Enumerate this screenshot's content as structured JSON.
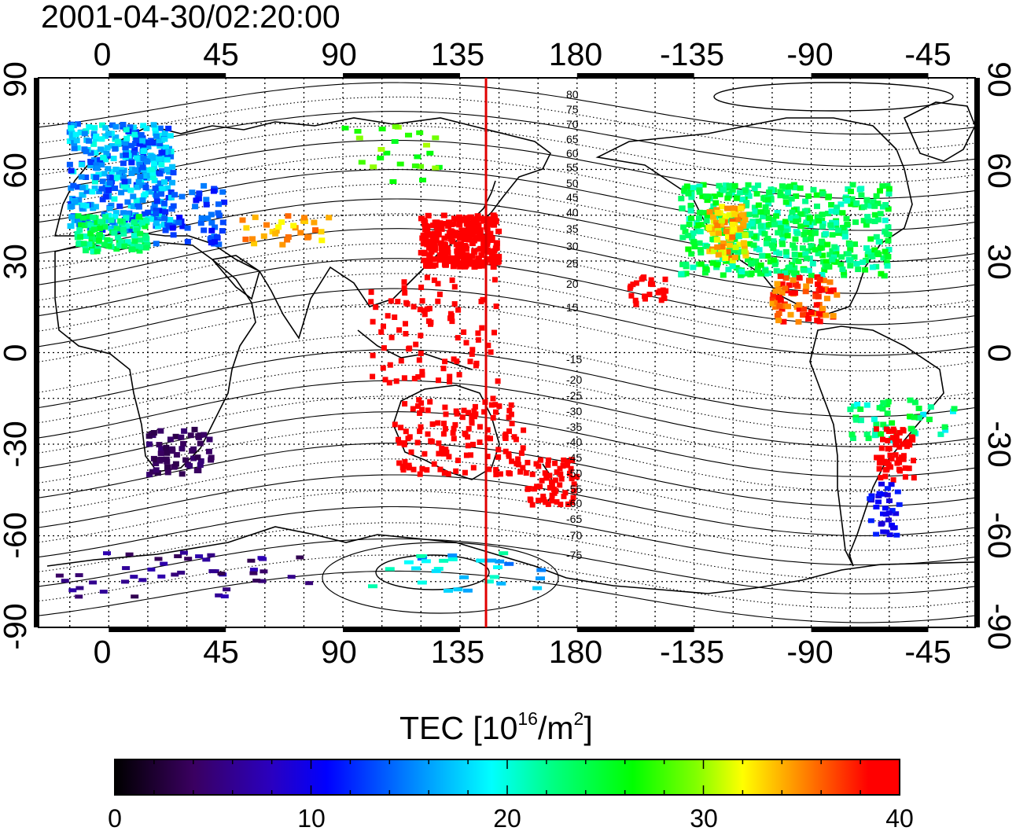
{
  "timestamp": "2001-04-30/02:20:00",
  "lon_top_labels": [
    "0",
    "45",
    "90",
    "135",
    "180",
    "-135",
    "-90",
    "-45"
  ],
  "lon_bottom_labels": [
    "0",
    "45",
    "90",
    "135",
    "180",
    "-135",
    "-90",
    "-45"
  ],
  "lat_left_labels": [
    "90",
    "60",
    "30",
    "0",
    "-30",
    "-60",
    "-90"
  ],
  "lat_right_labels": [
    "90",
    "60",
    "30",
    "0",
    "-30",
    "-60",
    "-90"
  ],
  "contour_labels": [
    "80",
    "75",
    "70",
    "65",
    "60",
    "55",
    "50",
    "45",
    "40",
    "35",
    "30",
    "25",
    "20",
    "15",
    "-15",
    "-20",
    "-25",
    "-30",
    "-35",
    "-40",
    "-45",
    "-50",
    "-55",
    "-60",
    "-65",
    "-70",
    "-75"
  ],
  "colorbar": {
    "title_prefix": "TEC  [10",
    "title_exp1": "16",
    "title_mid": "/m",
    "title_exp2": "2",
    "title_suffix": "]",
    "ticks": [
      "0",
      "10",
      "20",
      "30",
      "40"
    ],
    "range": [
      0,
      40
    ],
    "colors": [
      "#000000",
      "#3a0060",
      "#2a00c0",
      "#0000ff",
      "#00a0ff",
      "#00ffff",
      "#00ff80",
      "#00ff00",
      "#80ff00",
      "#ffff00",
      "#ff8000",
      "#ff0000"
    ]
  },
  "meridian_marker": {
    "longitude": 145,
    "color": "#e00000"
  }
}
